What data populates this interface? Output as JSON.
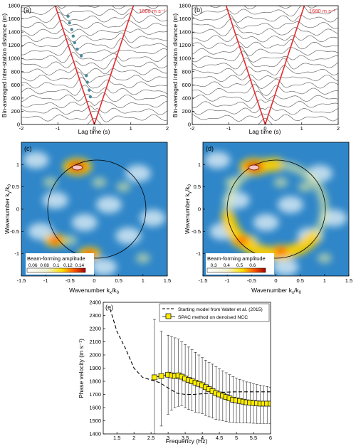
{
  "colors": {
    "trace": "#555555",
    "velocity_line": "#e8282c",
    "marker": "#4a8a99",
    "heat_low": "#2f86c8",
    "heat_high": "#b00000",
    "spac_fill": "#ffee00"
  },
  "chart_data": [
    {
      "panel": "(a)",
      "type": "line",
      "xlabel": "Lag time (s)",
      "ylabel": "Bin-averaged inter-station distance (m)",
      "xlim": [
        -2,
        2
      ],
      "ylim": [
        0,
        1800
      ],
      "xticks": [
        "-2",
        "-1",
        "0",
        "1",
        "2"
      ],
      "yticks": [
        "0",
        "200",
        "400",
        "600",
        "800",
        "1000",
        "1200",
        "1400",
        "1600",
        "1800"
      ],
      "velocity_label": "1680 m s⁻¹",
      "velocity_m_per_s": 1680,
      "distances_m": [
        0,
        100,
        200,
        300,
        400,
        500,
        600,
        700,
        800,
        900,
        1000,
        1100,
        1200,
        1300,
        1400,
        1500,
        1600,
        1700,
        1800
      ],
      "picked_arrivals": [
        {
          "lag_s": -0.72,
          "distance_m": 1640
        },
        {
          "lag_s": -0.68,
          "distance_m": 1540
        },
        {
          "lag_s": -0.62,
          "distance_m": 1440
        },
        {
          "lag_s": -0.58,
          "distance_m": 1340
        },
        {
          "lag_s": -0.54,
          "distance_m": 1240
        },
        {
          "lag_s": -0.47,
          "distance_m": 1140
        },
        {
          "lag_s": -0.36,
          "distance_m": 1040
        },
        {
          "lag_s": -0.22,
          "distance_m": 740
        },
        {
          "lag_s": -0.19,
          "distance_m": 640
        },
        {
          "lag_s": -0.14,
          "distance_m": 520
        },
        {
          "lag_s": -0.11,
          "distance_m": 420
        }
      ]
    },
    {
      "panel": "(b)",
      "type": "line",
      "xlabel": "Lag time (s)",
      "ylabel": "Bin-averaged inter-station distance (m)",
      "xlim": [
        -2,
        2
      ],
      "ylim": [
        0,
        1800
      ],
      "xticks": [
        "-2",
        "-1",
        "0",
        "1",
        "2"
      ],
      "yticks": [
        "0",
        "200",
        "400",
        "600",
        "800",
        "1000",
        "1200",
        "1400",
        "1600",
        "1800"
      ],
      "velocity_label": "1680 m s⁻¹",
      "velocity_m_per_s": 1680,
      "distances_m": [
        0,
        100,
        200,
        300,
        400,
        500,
        600,
        700,
        800,
        900,
        1000,
        1100,
        1200,
        1300,
        1400,
        1500,
        1600,
        1700,
        1800
      ]
    },
    {
      "panel": "(c)",
      "type": "heatmap",
      "xlabel": "Wavenumber k",
      "xlabel_sub": "x",
      "xlabel_tail": "/k",
      "xlabel_tail_sub": "0",
      "ylabel": "Wavenumber k",
      "ylabel_sub": "y",
      "ylabel_tail": "/k",
      "ylabel_tail_sub": "0",
      "xlim": [
        -1.5,
        1.5
      ],
      "ylim": [
        -1.5,
        1.5
      ],
      "xticks": [
        "-1.5",
        "-1",
        "-0.5",
        "0",
        "0.5",
        "1",
        "1.5"
      ],
      "yticks": [
        "-1",
        "-0.5",
        "0",
        "0.5",
        "1"
      ],
      "colorbar_title": "Beam-forming amplitude",
      "colorbar_ticks": [
        "0.06",
        "0.08",
        "0.1",
        "0.12",
        "0.14"
      ],
      "colorbar_range": [
        0.05,
        0.15
      ],
      "peaks": [
        {
          "kx": -0.35,
          "ky": 0.95,
          "amplitude": 0.15
        },
        {
          "kx": -0.8,
          "ky": -0.7,
          "amplitude": 0.1
        },
        {
          "kx": -0.1,
          "ky": -1.0,
          "amplitude": 0.09
        }
      ]
    },
    {
      "panel": "(d)",
      "type": "heatmap",
      "xlabel": "Wavenumber k",
      "xlabel_sub": "x",
      "xlabel_tail": "/k",
      "xlabel_tail_sub": "0",
      "ylabel": "Wavenumber k",
      "ylabel_sub": "y",
      "ylabel_tail": "/k",
      "ylabel_tail_sub": "0",
      "xlim": [
        -1.5,
        1.5
      ],
      "ylim": [
        -1.5,
        1.5
      ],
      "xticks": [
        "-1.5",
        "-1",
        "-0.5",
        "0",
        "0.5",
        "1",
        "1.5"
      ],
      "yticks": [
        "-1",
        "-0.5",
        "0",
        "0.5",
        "1"
      ],
      "colorbar_title": "Beam-forming amplitude",
      "colorbar_ticks": [
        "0.3",
        "0.4",
        "0.5",
        "0.6"
      ],
      "colorbar_range": [
        0.25,
        0.7
      ],
      "peaks": [
        {
          "kx": -0.45,
          "ky": 0.95,
          "amplitude": 0.7
        },
        {
          "kx": -0.7,
          "ky": -0.7,
          "amplitude": 0.6
        },
        {
          "kx": 0.1,
          "ky": -0.95,
          "amplitude": 0.55
        }
      ]
    },
    {
      "panel": "(e)",
      "type": "line",
      "xlabel": "Frequency (Hz)",
      "ylabel": "Phase velocity (m s⁻¹)",
      "xlim": [
        1.1,
        6
      ],
      "ylim": [
        1400,
        2400
      ],
      "xticks": [
        "1.5",
        "2",
        "2.5",
        "3",
        "3.5",
        "4",
        "4.5",
        "5",
        "5.5",
        "6"
      ],
      "yticks": [
        "1400",
        "1500",
        "1600",
        "1700",
        "1800",
        "1900",
        "2000",
        "2100",
        "2200",
        "2300",
        "2400"
      ],
      "series": [
        {
          "name": "Starting model from Walter et al. (2015)",
          "style": "dashed",
          "x": [
            1.3,
            1.5,
            1.75,
            2.0,
            2.25,
            2.5,
            2.75,
            3.0,
            3.25,
            3.5,
            3.75,
            4.0,
            4.25,
            4.5,
            4.75,
            5.0,
            5.25,
            5.5,
            5.75,
            6.0
          ],
          "values": [
            2350,
            2180,
            2050,
            1900,
            1830,
            1810,
            1790,
            1750,
            1710,
            1700,
            1700,
            1705,
            1710,
            1715,
            1718,
            1720,
            1720,
            1720,
            1720,
            1720
          ]
        },
        {
          "name": "SPAC method on denoised NCC",
          "style": "square-markers",
          "x": [
            2.6,
            2.8,
            3.0,
            3.1,
            3.2,
            3.3,
            3.4,
            3.5,
            3.6,
            3.7,
            3.8,
            3.9,
            4.0,
            4.1,
            4.2,
            4.3,
            4.4,
            4.5,
            4.6,
            4.7,
            4.8,
            4.9,
            5.0,
            5.1,
            5.2,
            5.3,
            5.4,
            5.5,
            5.6,
            5.7,
            5.8,
            5.9,
            6.0
          ],
          "values": [
            1830,
            1840,
            1850,
            1845,
            1840,
            1845,
            1835,
            1820,
            1810,
            1800,
            1790,
            1780,
            1770,
            1755,
            1740,
            1725,
            1710,
            1700,
            1690,
            1680,
            1670,
            1660,
            1655,
            1650,
            1645,
            1640,
            1638,
            1635,
            1632,
            1630,
            1630,
            1630,
            1630
          ],
          "error_upper": [
            2270,
            2180,
            2150,
            2140,
            2130,
            2120,
            2100,
            2080,
            2060,
            2040,
            2020,
            2000,
            1980,
            1960,
            1945,
            1930,
            1910,
            1895,
            1880,
            1865,
            1850,
            1835,
            1825,
            1815,
            1805,
            1795,
            1790,
            1780,
            1775,
            1770,
            1765,
            1760,
            1755
          ],
          "error_lower": [
            1400,
            1460,
            1550,
            1580,
            1600,
            1610,
            1615,
            1600,
            1585,
            1575,
            1565,
            1560,
            1555,
            1540,
            1530,
            1520,
            1510,
            1505,
            1500,
            1495,
            1490,
            1488,
            1486,
            1485,
            1484,
            1483,
            1482,
            1481,
            1480,
            1480,
            1480,
            1480,
            1480
          ]
        }
      ]
    }
  ]
}
